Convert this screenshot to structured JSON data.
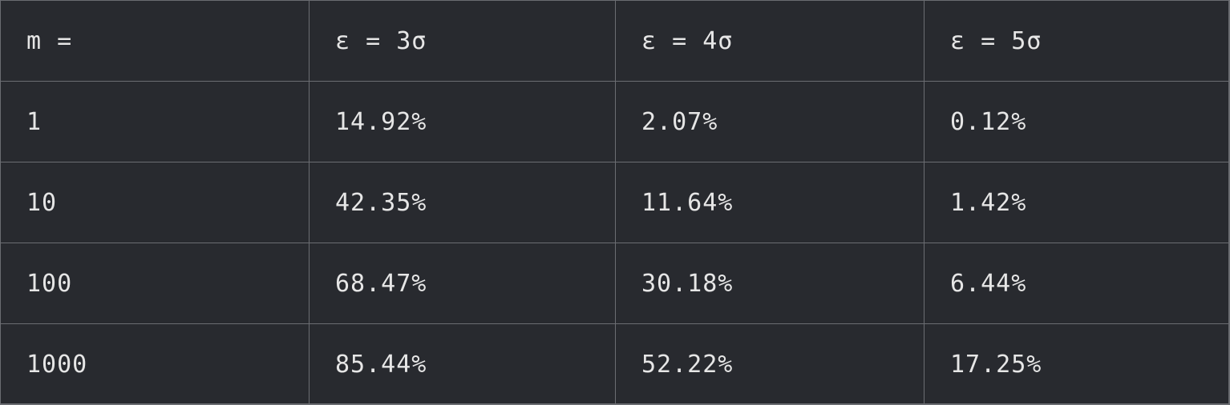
{
  "table": {
    "headers": [
      "m =",
      "ε = 3σ",
      "ε = 4σ",
      "ε = 5σ"
    ],
    "rows": [
      [
        "1",
        "14.92%",
        "2.07%",
        "0.12%"
      ],
      [
        "10",
        "42.35%",
        "11.64%",
        "1.42%"
      ],
      [
        "100",
        "68.47%",
        "30.18%",
        "6.44%"
      ],
      [
        "1000",
        "85.44%",
        "52.22%",
        "17.25%"
      ]
    ]
  }
}
